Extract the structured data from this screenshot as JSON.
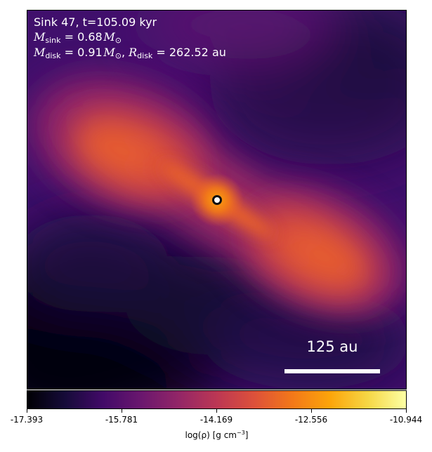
{
  "annotation": {
    "line1": "Sink 47, t=105.09 kyr",
    "sink_mass_symbol": "M",
    "sink_mass_subscript": "sink",
    "sink_mass_value": " = 0.68",
    "disk_mass_symbol": "M",
    "disk_mass_subscript": "disk",
    "disk_mass_value": " = 0.91",
    "disk_radius_symbol": "R",
    "disk_radius_subscript": "disk",
    "disk_radius_value": " = 262.52 au",
    "solar_mass_unit": "M",
    "solar_subscript": "⊙"
  },
  "scale_bar": {
    "label": "125 au"
  },
  "colorbar": {
    "ticks": [
      "-17.393",
      "-15.781",
      "-14.169",
      "-12.556",
      "-10.944"
    ],
    "title_prefix": "log(ρ) [g cm",
    "title_exponent": "−3",
    "title_suffix": "]",
    "colormap": "inferno"
  },
  "sink_marker": {
    "icon": "sink-particle-icon"
  }
}
